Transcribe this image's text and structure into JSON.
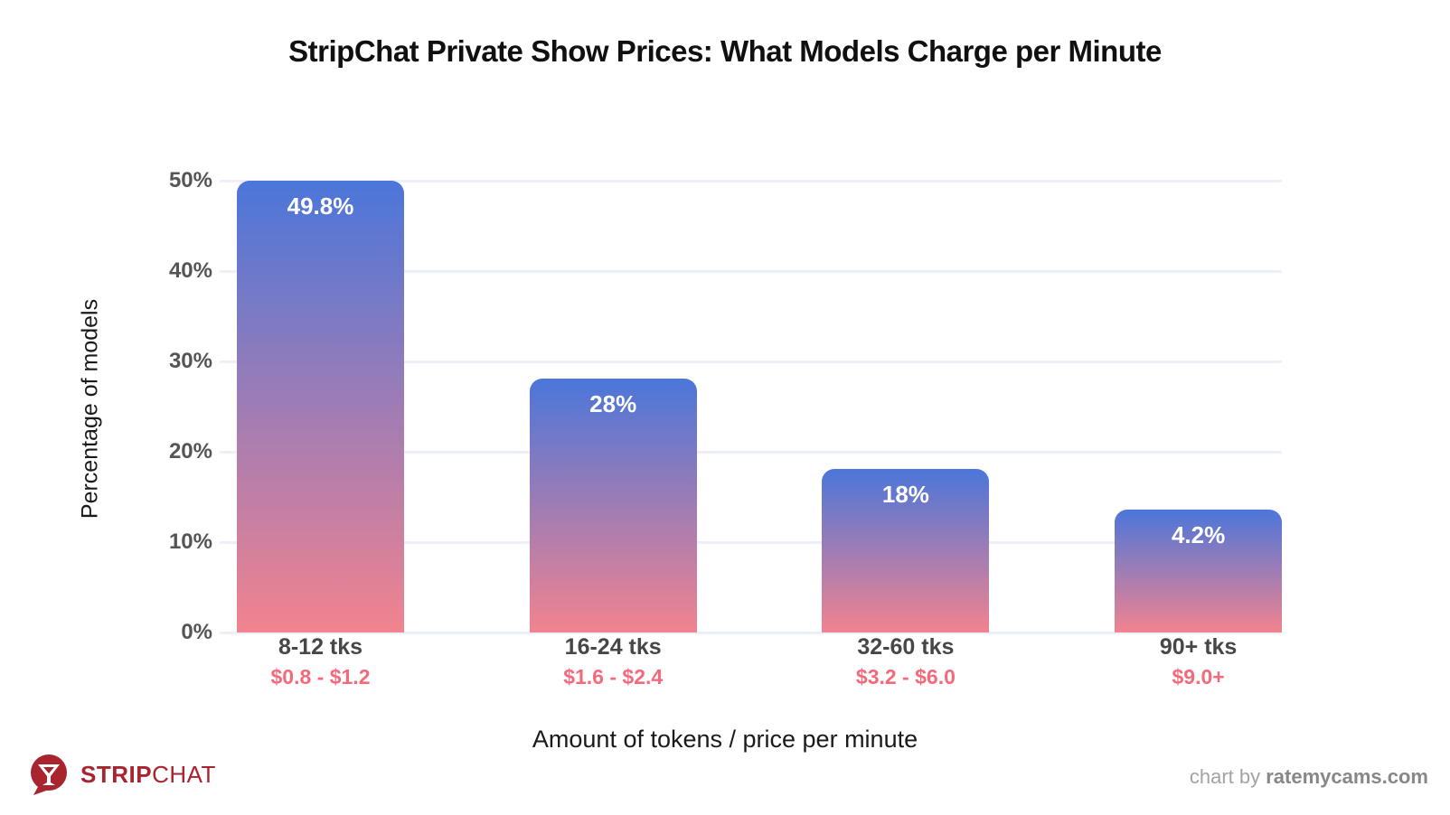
{
  "title": "StripChat Private Show Prices: What Models Charge per Minute",
  "chart_data": {
    "type": "bar",
    "title": "StripChat Private Show Prices: What Models Charge per Minute",
    "xlabel": "Amount of tokens / price per minute",
    "ylabel": "Percentage of models",
    "categories": [
      "8-12 tks",
      "16-24 tks",
      "32-60 tks",
      "90+ tks"
    ],
    "price_labels": [
      "$0.8 - $1.2",
      "$1.6 - $2.4",
      "$3.2 - $6.0",
      "$9.0+"
    ],
    "values": [
      49.8,
      28,
      18,
      4.2
    ],
    "value_labels": [
      "49.8%",
      "28%",
      "18%",
      "4.2%"
    ],
    "bar_visual_heights_pct": [
      49.8,
      28,
      18,
      13.5
    ],
    "ylim": [
      0,
      50
    ],
    "yticks": [
      "50%",
      "40%",
      "30%",
      "20%",
      "10%",
      "0%"
    ],
    "grid": true,
    "legend": "none",
    "colors": {
      "bar_gradient_top": "#4b76da",
      "bar_gradient_bottom": "#f2838f",
      "gridline": "#edf0f9",
      "tick_label": "#555555",
      "category_label": "#474747",
      "price_label": "#f56a7b",
      "value_label": "#ffffff"
    }
  },
  "footer": {
    "logo_icon": "speech-bubble-martini-icon",
    "logo_strip": "STRIP",
    "logo_chat": "CHAT",
    "logo_color": "#a8242f",
    "credit_prefix": "chart by ",
    "credit_brand": "ratemycams.com"
  }
}
